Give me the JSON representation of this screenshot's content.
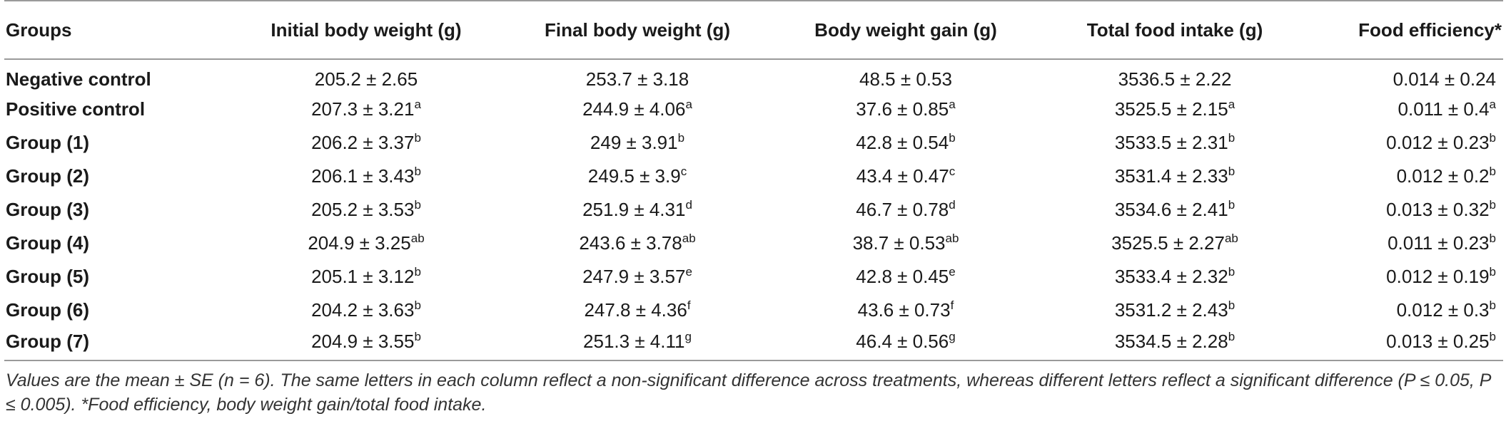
{
  "table": {
    "headers": [
      "Groups",
      "Initial body weight (g)",
      "Final body weight (g)",
      "Body weight gain (g)",
      "Total food intake (g)",
      "Food efficiency*"
    ],
    "rows": [
      {
        "label": "Negative control",
        "cells": [
          {
            "v": "205.2 ± 2.65",
            "s": ""
          },
          {
            "v": "253.7 ± 3.18",
            "s": ""
          },
          {
            "v": "48.5 ± 0.53",
            "s": ""
          },
          {
            "v": "3536.5 ± 2.22",
            "s": ""
          },
          {
            "v": "0.014 ± 0.24",
            "s": ""
          }
        ]
      },
      {
        "label": "Positive control",
        "cells": [
          {
            "v": "207.3 ± 3.21",
            "s": "a"
          },
          {
            "v": "244.9 ± 4.06",
            "s": "a"
          },
          {
            "v": "37.6 ± 0.85",
            "s": "a"
          },
          {
            "v": "3525.5 ± 2.15",
            "s": "a"
          },
          {
            "v": "0.011 ± 0.4",
            "s": "a"
          }
        ]
      },
      {
        "label": "Group (1)",
        "cells": [
          {
            "v": "206.2 ± 3.37",
            "s": "b"
          },
          {
            "v": "249 ± 3.91",
            "s": "b"
          },
          {
            "v": "42.8 ± 0.54",
            "s": "b"
          },
          {
            "v": "3533.5 ± 2.31",
            "s": "b"
          },
          {
            "v": "0.012 ± 0.23",
            "s": "b"
          }
        ]
      },
      {
        "label": "Group (2)",
        "cells": [
          {
            "v": "206.1 ± 3.43",
            "s": "b"
          },
          {
            "v": "249.5 ± 3.9",
            "s": "c"
          },
          {
            "v": "43.4 ± 0.47",
            "s": "c"
          },
          {
            "v": "3531.4 ± 2.33",
            "s": "b"
          },
          {
            "v": "0.012 ± 0.2",
            "s": "b"
          }
        ]
      },
      {
        "label": "Group (3)",
        "cells": [
          {
            "v": "205.2 ± 3.53",
            "s": "b"
          },
          {
            "v": "251.9 ± 4.31",
            "s": "d"
          },
          {
            "v": "46.7 ± 0.78",
            "s": "d"
          },
          {
            "v": "3534.6 ± 2.41",
            "s": "b"
          },
          {
            "v": "0.013 ± 0.32",
            "s": "b"
          }
        ]
      },
      {
        "label": "Group (4)",
        "cells": [
          {
            "v": "204.9 ± 3.25",
            "s": "ab"
          },
          {
            "v": "243.6 ± 3.78",
            "s": "ab"
          },
          {
            "v": "38.7 ± 0.53",
            "s": "ab"
          },
          {
            "v": "3525.5 ± 2.27",
            "s": "ab"
          },
          {
            "v": "0.011 ± 0.23",
            "s": "b"
          }
        ]
      },
      {
        "label": "Group (5)",
        "cells": [
          {
            "v": "205.1 ± 3.12",
            "s": "b"
          },
          {
            "v": "247.9 ± 3.57",
            "s": "e"
          },
          {
            "v": "42.8 ± 0.45",
            "s": "e"
          },
          {
            "v": "3533.4 ± 2.32",
            "s": "b"
          },
          {
            "v": "0.012 ± 0.19",
            "s": "b"
          }
        ]
      },
      {
        "label": "Group (6)",
        "cells": [
          {
            "v": "204.2 ± 3.63",
            "s": "b"
          },
          {
            "v": "247.8 ± 4.36",
            "s": "f"
          },
          {
            "v": "43.6 ± 0.73",
            "s": "f"
          },
          {
            "v": "3531.2 ± 2.43",
            "s": "b"
          },
          {
            "v": "0.012 ± 0.3",
            "s": "b"
          }
        ]
      },
      {
        "label": "Group (7)",
        "cells": [
          {
            "v": "204.9 ± 3.55",
            "s": "b"
          },
          {
            "v": "251.3 ± 4.11",
            "s": "g"
          },
          {
            "v": "46.4 ± 0.56",
            "s": "g"
          },
          {
            "v": "3534.5 ± 2.28",
            "s": "b"
          },
          {
            "v": "0.013 ± 0.25",
            "s": "b"
          }
        ]
      }
    ]
  },
  "footnote": "Values are the mean ± SE (n = 6). The same letters in each column reflect a non-significant difference across treatments, whereas different letters reflect a significant difference (P ≤ 0.05, P ≤ 0.005). *Food efficiency, body weight gain/total food intake.",
  "colors": {
    "rule": "#9a9a9a",
    "text": "#1a1a1a",
    "footnote": "#333333"
  }
}
